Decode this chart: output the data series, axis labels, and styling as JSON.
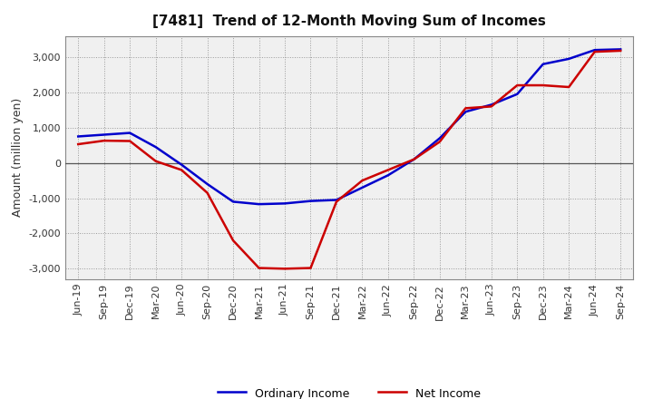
{
  "title": "[7481]  Trend of 12-Month Moving Sum of Incomes",
  "ylabel": "Amount (million yen)",
  "x_labels": [
    "Jun-19",
    "Sep-19",
    "Dec-19",
    "Mar-20",
    "Jun-20",
    "Sep-20",
    "Dec-20",
    "Mar-21",
    "Jun-21",
    "Sep-21",
    "Dec-21",
    "Mar-22",
    "Jun-22",
    "Sep-22",
    "Dec-22",
    "Mar-23",
    "Jun-23",
    "Sep-23",
    "Dec-23",
    "Mar-24",
    "Jun-24",
    "Sep-24"
  ],
  "ordinary_income": [
    750,
    800,
    850,
    450,
    -50,
    -600,
    -1100,
    -1170,
    -1150,
    -1080,
    -1050,
    -700,
    -350,
    100,
    700,
    1450,
    1650,
    1950,
    2800,
    2950,
    3200,
    3220
  ],
  "net_income": [
    530,
    630,
    620,
    50,
    -200,
    -850,
    -2200,
    -2980,
    -3000,
    -2980,
    -1100,
    -500,
    -200,
    100,
    600,
    1550,
    1600,
    2200,
    2200,
    2150,
    3150,
    3180
  ],
  "ordinary_income_color": "#0000cc",
  "net_income_color": "#cc0000",
  "ylim": [
    -3300,
    3600
  ],
  "yticks": [
    -3000,
    -2000,
    -1000,
    0,
    1000,
    2000,
    3000
  ],
  "plot_bg_color": "#f0f0f0",
  "background_color": "#ffffff",
  "grid_color": "#999999",
  "title_fontsize": 11,
  "axis_fontsize": 9,
  "tick_fontsize": 8,
  "legend_fontsize": 9
}
